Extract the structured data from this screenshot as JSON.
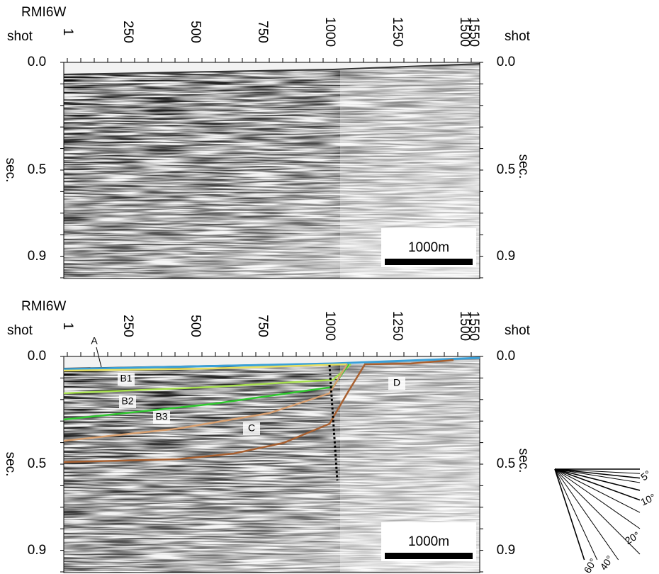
{
  "panels": [
    {
      "title": "RMI6W",
      "shot_label": "shot",
      "shot_ticks": [
        "1",
        "250",
        "500",
        "750",
        "1000",
        "1250",
        "1500",
        "1550"
      ],
      "time_ticks": [
        "0.0",
        "0.5",
        "0.9"
      ],
      "time_unit": "sec.",
      "scale_bar": "1000m"
    },
    {
      "title": "RMI6W",
      "shot_label": "shot",
      "shot_ticks": [
        "1",
        "250",
        "500",
        "750",
        "1000",
        "1250",
        "1500",
        "1550"
      ],
      "time_ticks": [
        "0.0",
        "0.5",
        "0.9"
      ],
      "time_unit": "sec.",
      "scale_bar": "1000m",
      "horizons": [
        "A",
        "B1",
        "B2",
        "B3",
        "C",
        "D"
      ]
    }
  ],
  "angle_legend": [
    "5°",
    "10°",
    "20°",
    "40°",
    "60°"
  ]
}
